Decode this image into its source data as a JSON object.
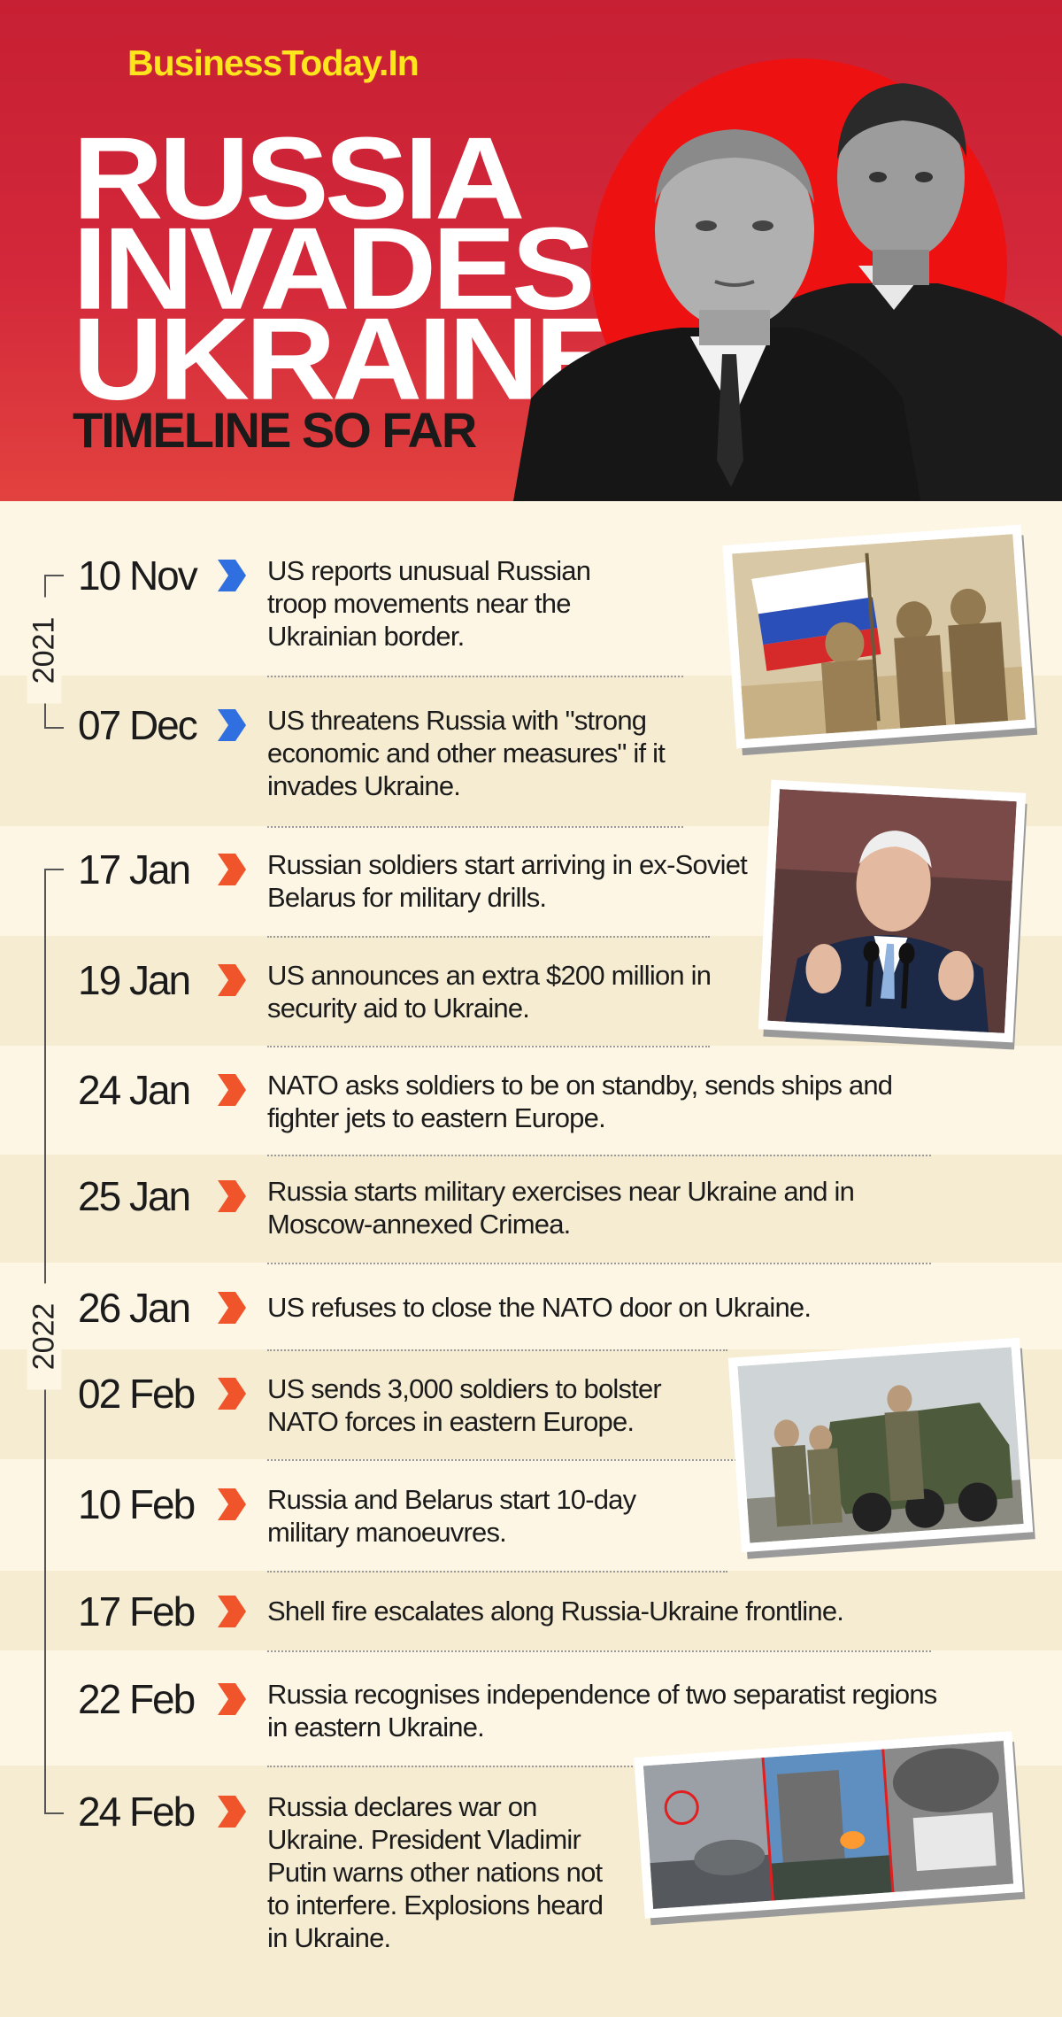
{
  "header": {
    "brand": "BusinessToday.In",
    "title_lines": [
      "RUSSIA",
      "INVADES",
      "UKRAINE"
    ],
    "subtitle": "TIMELINE SO FAR"
  },
  "years": [
    "2021",
    "2022"
  ],
  "events": [
    {
      "date": "10 Nov",
      "year": "2021",
      "text": "US reports unusual Russian troop movements near the Ukrainian border."
    },
    {
      "date": "07 Dec",
      "year": "2021",
      "text": "US threatens Russia with \"strong economic and other measures\" if it invades Ukraine."
    },
    {
      "date": "17 Jan",
      "year": "2022",
      "text": "Russian soldiers start arriving in ex-Soviet Belarus for military drills."
    },
    {
      "date": "19 Jan",
      "year": "2022",
      "text": "US announces an extra $200 million in security aid to Ukraine."
    },
    {
      "date": "24 Jan",
      "year": "2022",
      "text": "NATO asks soldiers to be on standby, sends ships and fighter jets to eastern Europe."
    },
    {
      "date": "25 Jan",
      "year": "2022",
      "text": "Russia starts military exercises near Ukraine and in Moscow-annexed Crimea."
    },
    {
      "date": "26 Jan",
      "year": "2022",
      "text": "US refuses to close the NATO door on Ukraine."
    },
    {
      "date": "02 Feb",
      "year": "2022",
      "text": "US sends 3,000 soldiers to bolster NATO forces in eastern Europe."
    },
    {
      "date": "10 Feb",
      "year": "2022",
      "text": "Russia and Belarus start 10-day military manoeuvres."
    },
    {
      "date": "17 Feb",
      "year": "2022",
      "text": "Shell fire escalates along Russia-Ukraine frontline."
    },
    {
      "date": "22 Feb",
      "year": "2022",
      "text": "Russia recognises independence of two separatist regions in eastern Ukraine."
    },
    {
      "date": "24 Feb",
      "year": "2022",
      "text": "Russia declares war on Ukraine. President Vladimir Putin warns other nations not to interfere. Explosions heard in Ukraine."
    }
  ],
  "colors": {
    "header_red": "#c71f33",
    "brand_yellow": "#ffe51d",
    "chevron_2021": "#2f6fe0",
    "chevron_2022": "#f0542a",
    "background": "#fdf6e4",
    "band_alt": "#f6ecd2"
  },
  "icons": {
    "chevron": "double-chevron-right-icon"
  }
}
